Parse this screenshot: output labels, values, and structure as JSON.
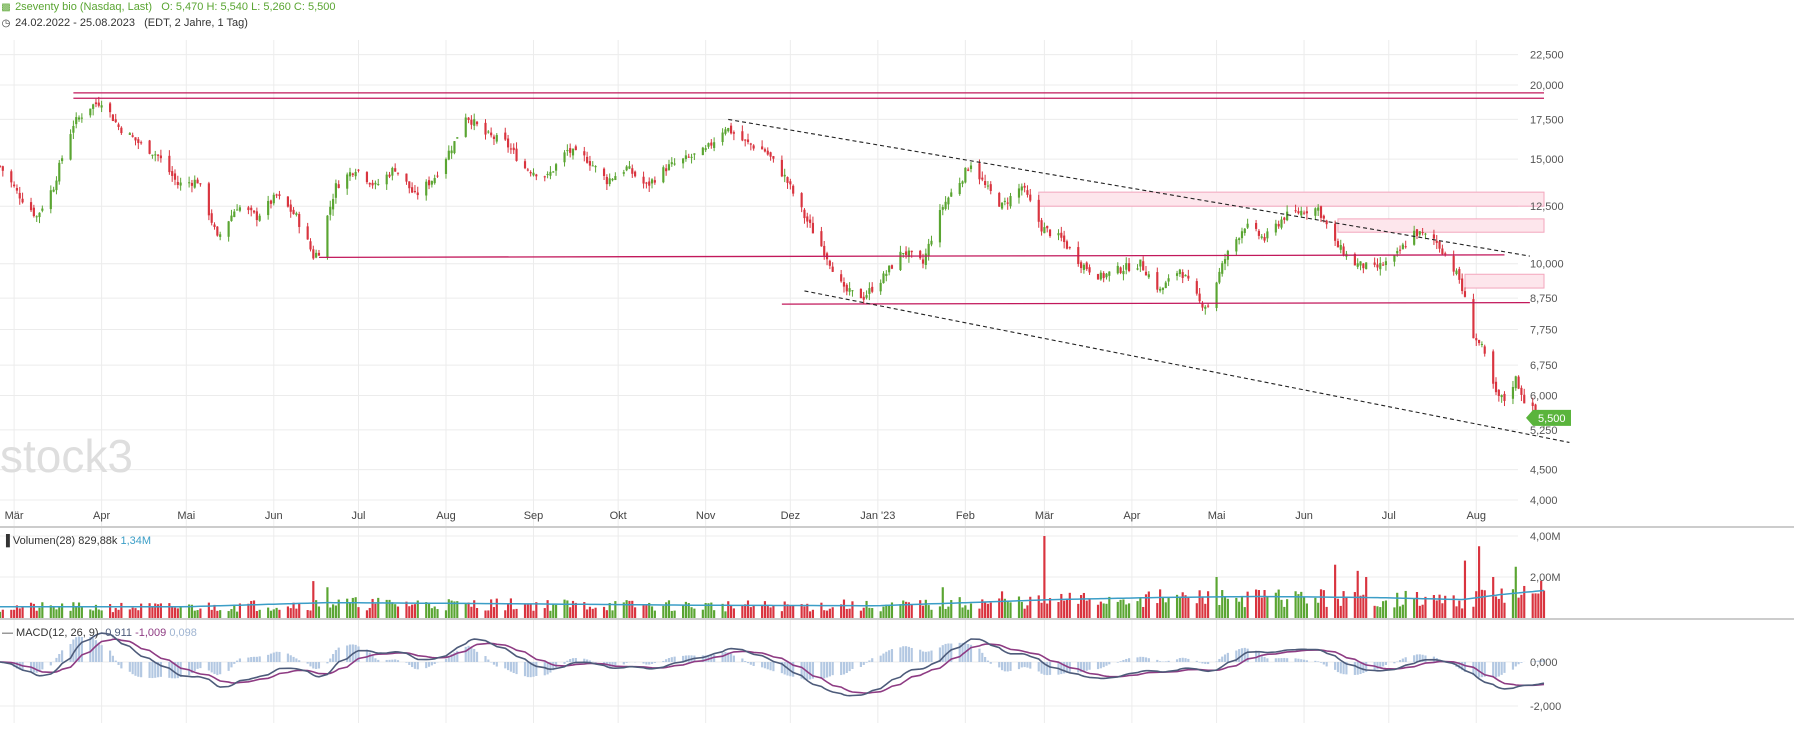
{
  "header": {
    "instrument": "2seventy bio (Nasdaq, Last)",
    "ohlc": "O: 5,470   H: 5,540   L: 5,260   C: 5,500",
    "range": "24.02.2022 - 25.08.2023",
    "interval": "(EDT, 2 Jahre, 1 Tag)"
  },
  "watermark": "stock3",
  "colors": {
    "up": "#5aa532",
    "down": "#d9343f",
    "price_tag": "#5ab43c",
    "resistance": "#c2185b",
    "zone_fill": "#fde6ec",
    "zone_stroke": "#f3a6bd",
    "volume_ma": "#3b9ec7",
    "macd_line": "#4d5b7a",
    "signal_line": "#8e3b83",
    "histogram": "#b3c8e2",
    "grid": "#ececec"
  },
  "chart_data": [
    {
      "type": "candlestick",
      "title": "2seventy bio (Nasdaq, Last)",
      "x_tick_labels": [
        "Mär",
        "Apr",
        "Mai",
        "Jun",
        "Jul",
        "Aug",
        "Sep",
        "Okt",
        "Nov",
        "Dez",
        "Jan '23",
        "Feb",
        "Mär",
        "Apr",
        "Mai",
        "Jun",
        "Jul",
        "Aug"
      ],
      "y_scale": "log",
      "y_ticks": [
        "4,000",
        "4,500",
        "5,250",
        "6,000",
        "6,750",
        "7,750",
        "8,750",
        "10,000",
        "12,500",
        "15,000",
        "17,500",
        "20,000",
        "22,500"
      ],
      "last_price": "5,500",
      "last": {
        "open": 5.47,
        "high": 5.54,
        "low": 5.26,
        "close": 5.5
      },
      "close_path": [
        [
          "2022-02-24",
          14.6
        ],
        [
          "2022-03-02",
          13.2
        ],
        [
          "2022-03-09",
          12.0
        ],
        [
          "2022-03-15",
          13.5
        ],
        [
          "2022-03-22",
          17.2
        ],
        [
          "2022-03-28",
          18.4
        ],
        [
          "2022-04-01",
          18.8
        ],
        [
          "2022-04-07",
          17.0
        ],
        [
          "2022-04-14",
          16.0
        ],
        [
          "2022-04-21",
          15.2
        ],
        [
          "2022-04-28",
          13.6
        ],
        [
          "2022-05-05",
          13.8
        ],
        [
          "2022-05-12",
          11.0
        ],
        [
          "2022-05-19",
          12.5
        ],
        [
          "2022-05-26",
          12.0
        ],
        [
          "2022-06-02",
          13.0
        ],
        [
          "2022-06-09",
          12.0
        ],
        [
          "2022-06-15",
          10.3
        ],
        [
          "2022-06-17",
          10.5
        ],
        [
          "2022-06-23",
          13.5
        ],
        [
          "2022-06-30",
          14.5
        ],
        [
          "2022-07-07",
          13.5
        ],
        [
          "2022-07-14",
          14.5
        ],
        [
          "2022-07-21",
          13.0
        ],
        [
          "2022-07-28",
          14.0
        ],
        [
          "2022-08-04",
          16.0
        ],
        [
          "2022-08-08",
          17.8
        ],
        [
          "2022-08-15",
          16.5
        ],
        [
          "2022-08-22",
          16.0
        ],
        [
          "2022-08-29",
          14.5
        ],
        [
          "2022-09-06",
          14.0
        ],
        [
          "2022-09-13",
          15.5
        ],
        [
          "2022-09-20",
          15.0
        ],
        [
          "2022-09-27",
          13.8
        ],
        [
          "2022-10-04",
          14.5
        ],
        [
          "2022-10-11",
          13.5
        ],
        [
          "2022-10-18",
          14.5
        ],
        [
          "2022-10-25",
          15.0
        ],
        [
          "2022-11-01",
          15.5
        ],
        [
          "2022-11-08",
          17.0
        ],
        [
          "2022-11-15",
          16.0
        ],
        [
          "2022-11-22",
          15.5
        ],
        [
          "2022-11-29",
          14.0
        ],
        [
          "2022-12-06",
          12.0
        ],
        [
          "2022-12-13",
          10.5
        ],
        [
          "2022-12-20",
          9.0
        ],
        [
          "2022-12-27",
          8.8
        ],
        [
          "2023-01-03",
          9.5
        ],
        [
          "2023-01-10",
          10.5
        ],
        [
          "2023-01-17",
          10.0
        ],
        [
          "2023-01-24",
          12.5
        ],
        [
          "2023-01-31",
          14.0
        ],
        [
          "2023-02-03",
          14.8
        ],
        [
          "2023-02-08",
          13.5
        ],
        [
          "2023-02-14",
          12.5
        ],
        [
          "2023-02-21",
          13.5
        ],
        [
          "2023-02-28",
          11.5
        ],
        [
          "2023-03-07",
          11.0
        ],
        [
          "2023-03-14",
          10.0
        ],
        [
          "2023-03-21",
          9.5
        ],
        [
          "2023-03-28",
          9.8
        ],
        [
          "2023-04-04",
          10.0
        ],
        [
          "2023-04-11",
          9.0
        ],
        [
          "2023-04-18",
          9.8
        ],
        [
          "2023-04-25",
          8.6
        ],
        [
          "2023-04-28",
          8.5
        ],
        [
          "2023-05-04",
          10.2
        ],
        [
          "2023-05-11",
          11.6
        ],
        [
          "2023-05-18",
          11.0
        ],
        [
          "2023-05-25",
          12.0
        ],
        [
          "2023-06-01",
          12.3
        ],
        [
          "2023-06-06",
          12.4
        ],
        [
          "2023-06-12",
          10.8
        ],
        [
          "2023-06-19",
          10.0
        ],
        [
          "2023-06-26",
          9.8
        ],
        [
          "2023-07-03",
          10.2
        ],
        [
          "2023-07-10",
          11.3
        ],
        [
          "2023-07-17",
          11.0
        ],
        [
          "2023-07-21",
          10.4
        ],
        [
          "2023-07-26",
          9.4
        ],
        [
          "2023-07-31",
          7.6
        ],
        [
          "2023-08-03",
          7.2
        ],
        [
          "2023-08-08",
          6.0
        ],
        [
          "2023-08-11",
          5.9
        ],
        [
          "2023-08-15",
          6.4
        ],
        [
          "2023-08-18",
          5.9
        ],
        [
          "2023-08-22",
          5.6
        ],
        [
          "2023-08-25",
          5.5
        ]
      ],
      "annotations": {
        "horizontal_lines": [
          {
            "from": "2022-03-22",
            "to": "2023-08-25",
            "value": 19.4,
            "extend": true
          },
          {
            "from": "2022-03-22",
            "to": "2023-08-25",
            "value": 19.0,
            "extend": true
          },
          {
            "from": "2022-06-17",
            "to": "2023-08-11",
            "value": 10.25,
            "end_value": 10.35
          },
          {
            "from": "2022-11-28",
            "to": "2023-08-20",
            "value": 8.55,
            "end_value": 8.6
          }
        ],
        "trend_lines": [
          {
            "from": "2022-11-09",
            "from_value": 17.5,
            "to": "2023-08-20",
            "to_value": 10.3,
            "style": "dashed"
          },
          {
            "from": "2022-12-06",
            "from_value": 9.0,
            "to": "2023-09-03",
            "to_value": 5.0,
            "style": "dashed"
          }
        ],
        "zones": [
          {
            "from": "2023-02-27",
            "low": 12.5,
            "high": 13.2
          },
          {
            "from": "2023-06-13",
            "low": 11.3,
            "high": 11.9
          },
          {
            "from": "2023-07-28",
            "low": 9.1,
            "high": 9.6
          }
        ]
      }
    },
    {
      "type": "bar",
      "title": "Volumen(28)",
      "legend": [
        "829,88k",
        "1,34M"
      ],
      "y_ticks": [
        "2,00M",
        "4,00M"
      ],
      "spikes": [
        [
          "2022-06-15",
          1.8
        ],
        [
          "2022-06-20",
          1.5
        ],
        [
          "2022-08-08",
          0.7
        ],
        [
          "2022-12-20",
          0.9
        ],
        [
          "2023-01-24",
          1.5
        ],
        [
          "2023-02-14",
          1.3
        ],
        [
          "2023-03-01",
          4.0
        ],
        [
          "2023-03-21",
          0.8
        ],
        [
          "2023-04-04",
          1.0
        ],
        [
          "2023-05-01",
          2.0
        ],
        [
          "2023-06-01",
          1.0
        ],
        [
          "2023-06-12",
          2.6
        ],
        [
          "2023-06-20",
          2.3
        ],
        [
          "2023-06-23",
          2.0
        ],
        [
          "2023-07-28",
          2.8
        ],
        [
          "2023-08-02",
          3.5
        ],
        [
          "2023-08-07",
          2.0
        ],
        [
          "2023-08-15",
          2.5
        ],
        [
          "2023-08-22",
          1.2
        ]
      ],
      "moving_average": [
        [
          "2022-02-24",
          0.55
        ],
        [
          "2022-05-01",
          0.55
        ],
        [
          "2022-06-20",
          0.75
        ],
        [
          "2022-08-20",
          0.7
        ],
        [
          "2022-11-01",
          0.62
        ],
        [
          "2023-01-01",
          0.6
        ],
        [
          "2023-03-05",
          0.9
        ],
        [
          "2023-04-10",
          1.0
        ],
        [
          "2023-05-15",
          1.05
        ],
        [
          "2023-06-25",
          1.0
        ],
        [
          "2023-07-27",
          0.9
        ],
        [
          "2023-08-10",
          1.15
        ],
        [
          "2023-08-25",
          1.34
        ]
      ]
    },
    {
      "type": "line",
      "title": "MACD(12, 26, 9)",
      "legend": [
        "-0,911",
        "-1,009",
        "0,098"
      ],
      "y_ticks": [
        "0,000",
        "-2,000"
      ]
    }
  ]
}
